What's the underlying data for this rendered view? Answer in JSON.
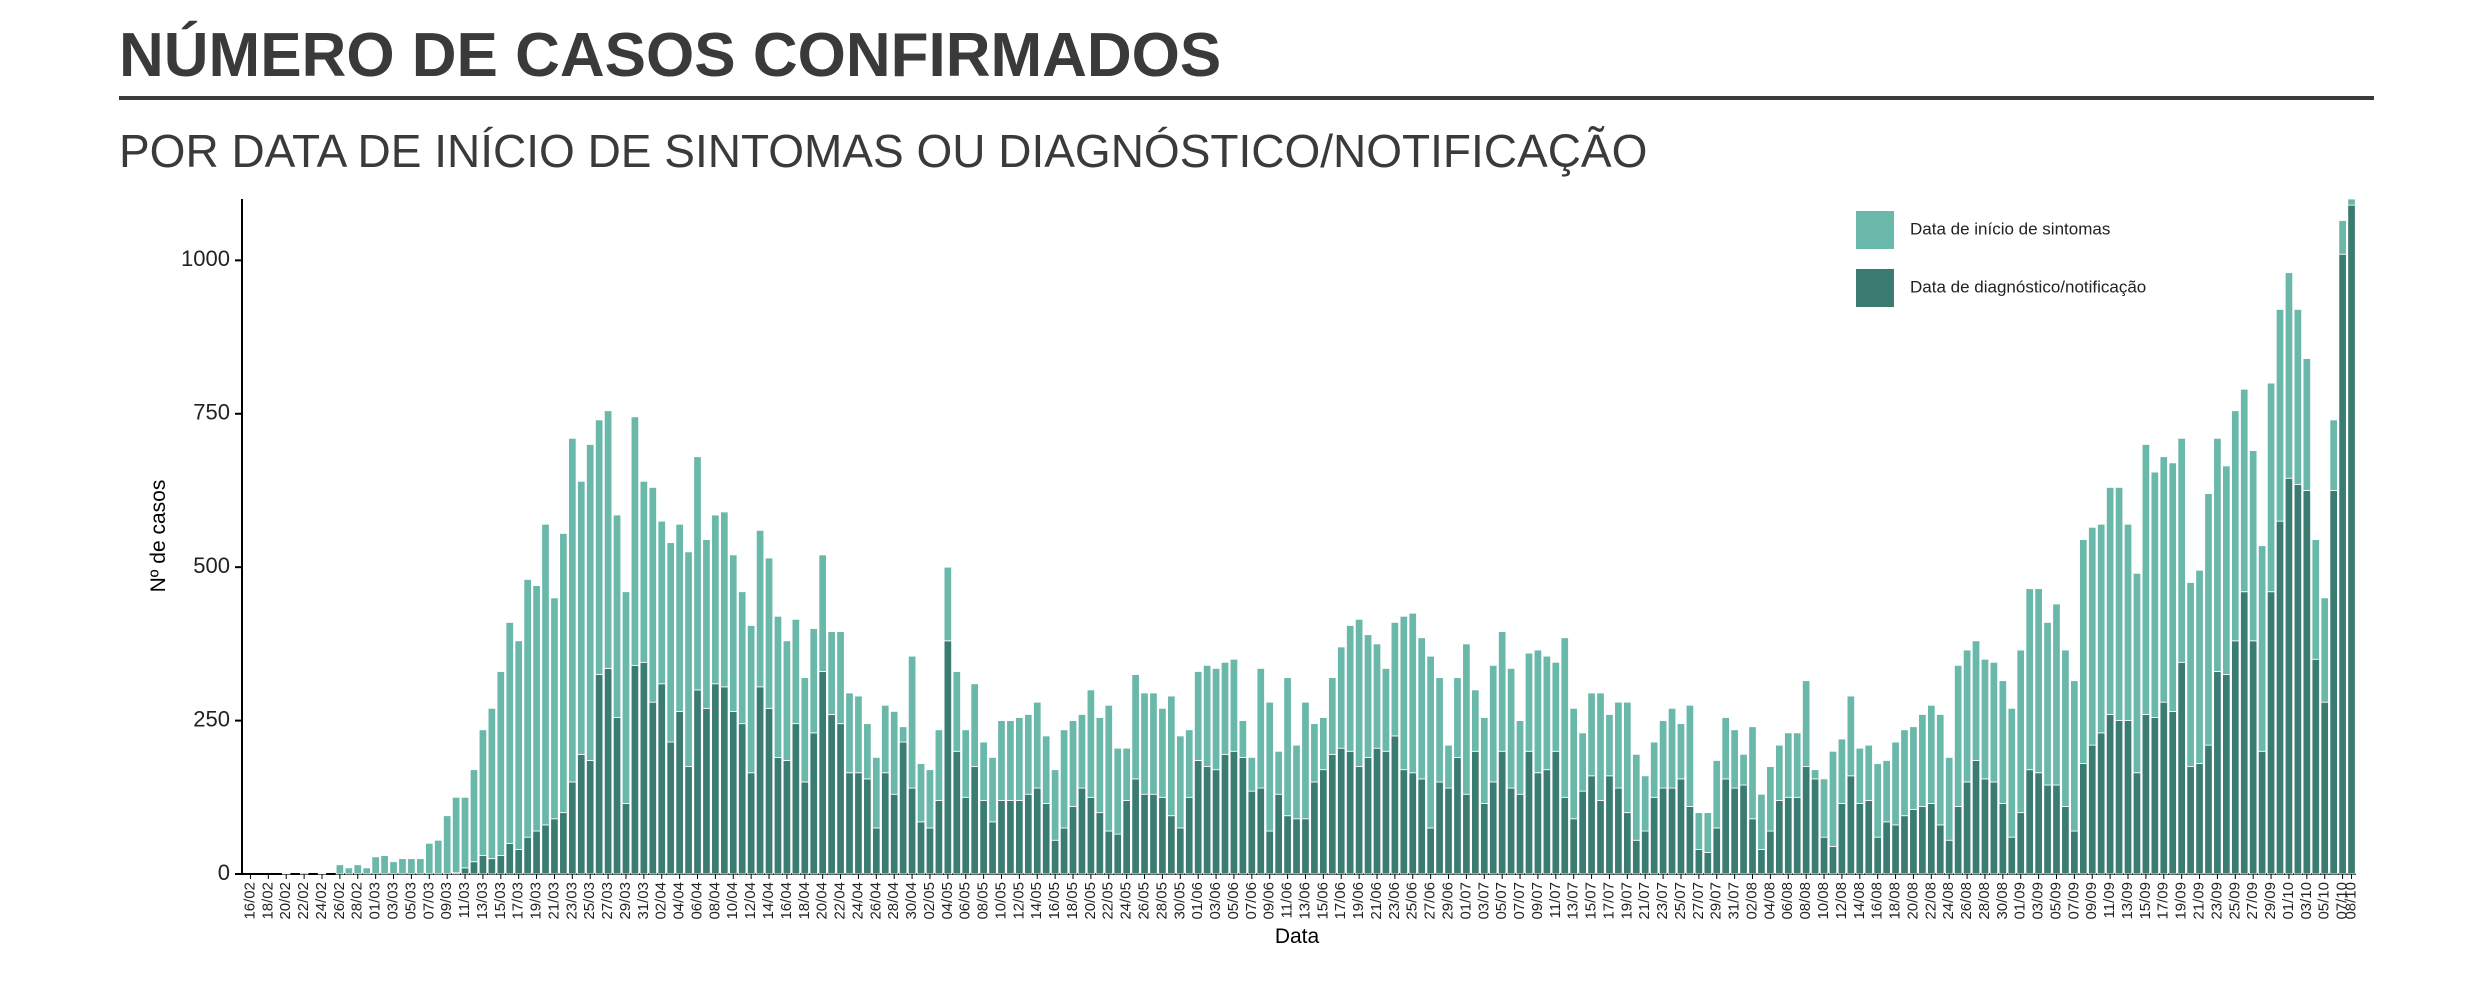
{
  "chart_data": {
    "type": "bar",
    "stacked": true,
    "title": "NÚMERO DE CASOS CONFIRMADOS",
    "subtitle": "POR DATA DE INÍCIO DE SINTOMAS OU DIAGNÓSTICO/NOTIFICAÇÃO",
    "x_label": "Data",
    "y_label": "Nº de casos",
    "categories": [
      "16/02",
      null,
      "18/02",
      null,
      "20/02",
      null,
      "22/02",
      null,
      "24/02",
      null,
      "26/02",
      null,
      "28/02",
      null,
      "01/03",
      null,
      "03/03",
      null,
      "05/03",
      null,
      "07/03",
      null,
      "09/03",
      null,
      "11/03",
      null,
      "13/03",
      null,
      "15/03",
      null,
      "17/03",
      null,
      "19/03",
      null,
      "21/03",
      null,
      "23/03",
      null,
      "25/03",
      null,
      "27/03",
      null,
      "29/03",
      null,
      "31/03",
      null,
      "02/04",
      null,
      "04/04",
      null,
      "06/04",
      null,
      "08/04",
      null,
      "10/04",
      null,
      "12/04",
      null,
      "14/04",
      null,
      "16/04",
      null,
      "18/04",
      null,
      "20/04",
      null,
      "22/04",
      null,
      "24/04",
      null,
      "26/04",
      null,
      "28/04",
      null,
      "30/04",
      null,
      "02/05",
      null,
      "04/05",
      null,
      "06/05",
      null,
      "08/05",
      null,
      "10/05",
      null,
      "12/05",
      null,
      "14/05",
      null,
      "16/05",
      null,
      "18/05",
      null,
      "20/05",
      null,
      "22/05",
      null,
      "24/05",
      null,
      "26/05",
      null,
      "28/05",
      null,
      "30/05",
      null,
      "01/06",
      null,
      "03/06",
      null,
      "05/06",
      null,
      "07/06",
      null,
      "09/06",
      null,
      "11/06",
      null,
      "13/06",
      null,
      "15/06",
      null,
      "17/06",
      null,
      "19/06",
      null,
      "21/06",
      null,
      "23/06",
      null,
      "25/06",
      null,
      "27/06",
      null,
      "29/06",
      null,
      "01/07",
      null,
      "03/07",
      null,
      "05/07",
      null,
      "07/07",
      null,
      "09/07",
      null,
      "11/07",
      null,
      "13/07",
      null,
      "15/07",
      null,
      "17/07",
      null,
      "19/07",
      null,
      "21/07",
      null,
      "23/07",
      null,
      "25/07",
      null,
      "27/07",
      null,
      "29/07",
      null,
      "31/07",
      null,
      "02/08",
      null,
      "04/08",
      null,
      "06/08",
      null,
      "08/08",
      null,
      "10/08",
      null,
      "12/08",
      null,
      "14/08",
      null,
      "16/08",
      null,
      "18/08",
      null,
      "20/08",
      null,
      "22/08",
      null,
      "24/08",
      null,
      "26/08",
      null,
      "28/08",
      null,
      "30/08",
      null,
      "01/09",
      null,
      "03/09",
      null,
      "05/09",
      null,
      "07/09",
      null,
      "09/09",
      null,
      "11/09",
      null,
      "13/09",
      null,
      "15/09",
      null,
      "17/09",
      null,
      "19/09",
      null,
      "21/09",
      null,
      "23/09",
      null,
      "25/09",
      null,
      "27/09",
      null,
      "29/09",
      null,
      "01/10",
      null,
      "03/10",
      null,
      "05/10",
      null,
      "07/10",
      "08/10"
    ],
    "series": [
      {
        "name": "Data de início de sintomas",
        "color": "#69b8aa",
        "values": [
          0,
          0,
          0,
          0,
          1,
          0,
          2,
          0,
          1,
          0,
          15,
          10,
          15,
          10,
          28,
          30,
          20,
          25,
          25,
          25,
          50,
          55,
          95,
          123,
          115,
          150,
          205,
          245,
          300,
          360,
          340,
          420,
          400,
          490,
          360,
          455,
          560,
          445,
          515,
          415,
          420,
          330,
          345,
          405,
          295,
          350,
          265,
          325,
          305,
          350,
          380,
          275,
          275,
          285,
          255,
          215,
          240,
          255,
          245,
          230,
          195,
          170,
          170,
          170,
          190,
          135,
          150,
          130,
          125,
          90,
          115,
          110,
          135,
          25,
          215,
          95,
          95,
          115,
          120,
          130,
          110,
          135,
          95,
          105,
          130,
          130,
          135,
          130,
          140,
          110,
          115,
          160,
          140,
          120,
          175,
          155,
          205,
          140,
          85,
          170,
          165,
          165,
          145,
          195,
          150,
          110,
          145,
          165,
          165,
          150,
          150,
          60,
          55,
          195,
          210,
          70,
          225,
          120,
          190,
          95,
          85,
          125,
          165,
          205,
          240,
          200,
          170,
          135,
          185,
          250,
          260,
          230,
          280,
          170,
          70,
          130,
          245,
          100,
          140,
          190,
          195,
          195,
          120,
          160,
          200,
          185,
          145,
          260,
          180,
          95,
          135,
          175,
          100,
          140,
          180,
          140,
          90,
          90,
          110,
          130,
          90,
          165,
          60,
          65,
          110,
          100,
          95,
          50,
          150,
          90,
          105,
          90,
          105,
          105,
          140,
          15,
          95,
          155,
          105,
          130,
          90,
          90,
          120,
          100,
          135,
          140,
          135,
          150,
          160,
          180,
          135,
          230,
          215,
          195,
          195,
          195,
          200,
          210,
          265,
          295,
          300,
          265,
          295,
          255,
          245,
          365,
          355,
          340,
          370,
          380,
          320,
          325,
          440,
          400,
          400,
          405,
          365,
          300,
          315,
          410,
          380,
          340,
          375,
          330,
          310,
          335,
          340,
          345,
          335,
          285,
          215,
          195,
          170,
          115,
          55,
          10
        ]
      },
      {
        "name": "Data de diagnóstico/notificação",
        "color": "#3b7c72",
        "values": [
          0,
          0,
          0,
          0,
          0,
          0,
          0,
          0,
          0,
          0,
          0,
          0,
          0,
          0,
          0,
          0,
          0,
          0,
          0,
          0,
          0,
          0,
          0,
          2,
          10,
          20,
          30,
          25,
          30,
          50,
          40,
          60,
          70,
          80,
          90,
          100,
          150,
          195,
          185,
          325,
          335,
          255,
          115,
          340,
          345,
          280,
          310,
          215,
          265,
          175,
          300,
          270,
          310,
          305,
          265,
          245,
          165,
          305,
          270,
          190,
          185,
          245,
          150,
          230,
          330,
          260,
          245,
          165,
          165,
          155,
          75,
          165,
          130,
          215,
          140,
          85,
          75,
          120,
          380,
          200,
          125,
          175,
          120,
          85,
          120,
          120,
          120,
          130,
          140,
          115,
          55,
          75,
          110,
          140,
          125,
          100,
          70,
          65,
          120,
          155,
          130,
          130,
          125,
          95,
          75,
          125,
          185,
          175,
          170,
          195,
          200,
          190,
          135,
          140,
          70,
          130,
          95,
          90,
          90,
          150,
          170,
          195,
          205,
          200,
          175,
          190,
          205,
          200,
          225,
          170,
          165,
          155,
          75,
          150,
          140,
          190,
          130,
          200,
          115,
          150,
          200,
          140,
          130,
          200,
          165,
          170,
          200,
          125,
          90,
          135,
          160,
          120,
          160,
          140,
          100,
          55,
          70,
          125,
          140,
          140,
          155,
          110,
          40,
          35,
          75,
          155,
          140,
          145,
          90,
          40,
          70,
          120,
          125,
          125,
          175,
          155,
          60,
          45,
          115,
          160,
          115,
          120,
          60,
          85,
          80,
          95,
          105,
          110,
          115,
          80,
          55,
          110,
          150,
          185,
          155,
          150,
          115,
          60,
          100,
          170,
          165,
          145,
          145,
          110,
          70,
          180,
          210,
          230,
          260,
          250,
          250,
          165,
          260,
          255,
          280,
          265,
          345,
          175,
          180,
          210,
          330,
          325,
          380,
          460,
          380,
          200,
          460,
          575,
          645,
          635,
          625,
          350,
          280,
          625,
          1010,
          1090
        ]
      }
    ],
    "ylim": [
      0,
      1100
    ],
    "yticks": [
      0,
      250,
      500,
      750,
      1000
    ],
    "grid": false,
    "legend": "top-right"
  }
}
